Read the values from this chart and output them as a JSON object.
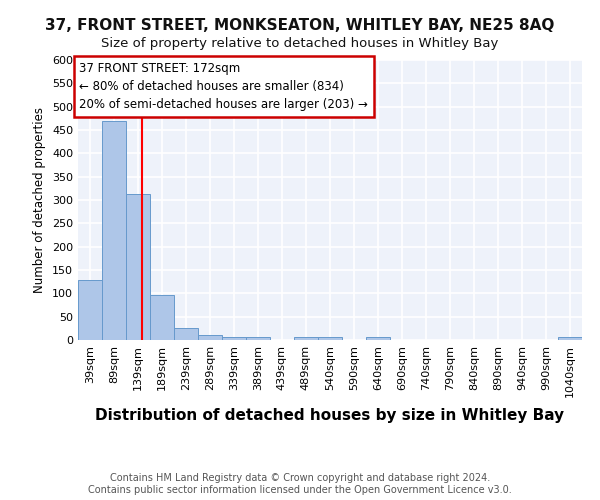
{
  "title1": "37, FRONT STREET, MONKSEATON, WHITLEY BAY, NE25 8AQ",
  "title2": "Size of property relative to detached houses in Whitley Bay",
  "xlabel": "Distribution of detached houses by size in Whitley Bay",
  "ylabel": "Number of detached properties",
  "categories": [
    "39sqm",
    "89sqm",
    "139sqm",
    "189sqm",
    "239sqm",
    "289sqm",
    "339sqm",
    "389sqm",
    "439sqm",
    "489sqm",
    "540sqm",
    "590sqm",
    "640sqm",
    "690sqm",
    "740sqm",
    "790sqm",
    "840sqm",
    "890sqm",
    "940sqm",
    "990sqm",
    "1040sqm"
  ],
  "values": [
    128,
    470,
    312,
    97,
    25,
    10,
    6,
    6,
    0,
    6,
    6,
    0,
    6,
    0,
    0,
    0,
    0,
    0,
    0,
    0,
    6
  ],
  "bar_color": "#aec6e8",
  "bar_edge_color": "#6699cc",
  "background_color": "#eef2fa",
  "grid_color": "#ffffff",
  "red_line_x": 172,
  "bin_starts": [
    39,
    89,
    139,
    189,
    239,
    289,
    339,
    389,
    439,
    489,
    540,
    590,
    640,
    690,
    740,
    790,
    840,
    890,
    940,
    990,
    1040
  ],
  "bin_width": 50,
  "annotation_text": "37 FRONT STREET: 172sqm\n← 80% of detached houses are smaller (834)\n20% of semi-detached houses are larger (203) →",
  "annotation_box_facecolor": "#ffffff",
  "annotation_box_edgecolor": "#cc0000",
  "ylim": [
    0,
    600
  ],
  "yticks": [
    0,
    50,
    100,
    150,
    200,
    250,
    300,
    350,
    400,
    450,
    500,
    550,
    600
  ],
  "footer_text": "Contains HM Land Registry data © Crown copyright and database right 2024.\nContains public sector information licensed under the Open Government Licence v3.0.",
  "title1_fontsize": 11,
  "title2_fontsize": 9.5,
  "xlabel_fontsize": 11,
  "ylabel_fontsize": 8.5,
  "tick_fontsize": 8,
  "footer_fontsize": 7,
  "annotation_fontsize": 8.5
}
